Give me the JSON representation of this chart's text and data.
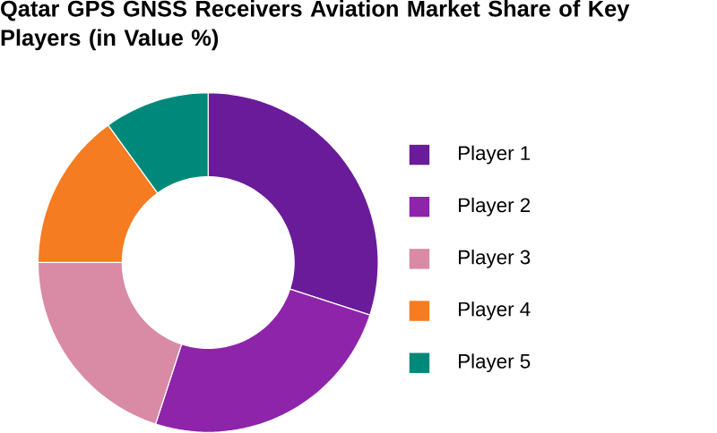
{
  "chart_data": {
    "type": "donut",
    "title": "Qatar GPS GNSS Receivers Aviation Market Share of Key Players (in Value %)",
    "categories": [
      "Player 1",
      "Player 2",
      "Player 3",
      "Player 4",
      "Player 5"
    ],
    "values": [
      30,
      25,
      20,
      15,
      10
    ],
    "colors": [
      "#6a1b9a",
      "#8e24aa",
      "#d98aa5",
      "#f57c20",
      "#00897b"
    ],
    "legend": "right"
  }
}
